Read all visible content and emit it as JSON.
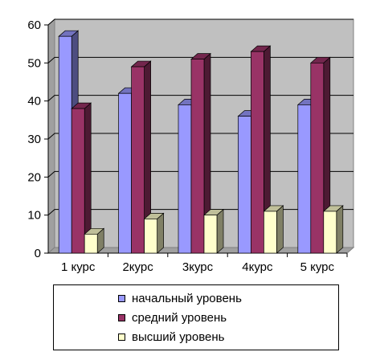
{
  "chart_data": {
    "type": "bar",
    "categories": [
      "1 курс",
      "2курс",
      "3курс",
      "4курс",
      "5 курс"
    ],
    "series": [
      {
        "name": "начальный уровень",
        "values": [
          57,
          42,
          39,
          36,
          39
        ],
        "color": "#9999ff"
      },
      {
        "name": "средний уровень",
        "values": [
          38,
          49,
          51,
          53,
          50
        ],
        "color": "#993366"
      },
      {
        "name": "высший уровень",
        "values": [
          5,
          9,
          10,
          11,
          11
        ],
        "color": "#ffffcc"
      }
    ],
    "ylim": [
      0,
      60
    ],
    "yticks": [
      0,
      10,
      20,
      30,
      40,
      50,
      60
    ],
    "grid": true,
    "style": "3d-column",
    "plot_background": "#c0c0c0",
    "legend_position": "bottom"
  }
}
